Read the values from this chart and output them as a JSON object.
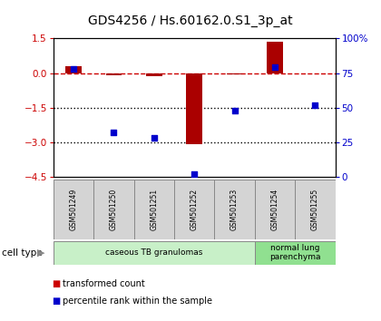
{
  "title": "GDS4256 / Hs.60162.0.S1_3p_at",
  "samples": [
    "GSM501249",
    "GSM501250",
    "GSM501251",
    "GSM501252",
    "GSM501253",
    "GSM501254",
    "GSM501255"
  ],
  "transformed_count": [
    0.3,
    -0.1,
    -0.15,
    -3.1,
    -0.05,
    1.35,
    -0.02
  ],
  "percentile_rank": [
    78,
    32,
    28,
    2,
    48,
    79,
    52
  ],
  "ylim_left": [
    -4.5,
    1.5
  ],
  "ylim_right": [
    0,
    100
  ],
  "left_ticks": [
    1.5,
    0,
    -1.5,
    -3.0,
    -4.5
  ],
  "right_ticks": [
    100,
    75,
    50,
    25,
    0
  ],
  "right_tick_labels": [
    "100%",
    "75",
    "50",
    "25",
    "0"
  ],
  "bar_color": "#aa0000",
  "dot_color": "#0000cc",
  "hline_y": 0,
  "hline_color": "#cc0000",
  "dotted_lines": [
    -1.5,
    -3.0
  ],
  "cell_type_groups": [
    {
      "label": "caseous TB granulomas",
      "start": 0,
      "end": 5,
      "color": "#c8f0c8"
    },
    {
      "label": "normal lung\nparenchyma",
      "start": 5,
      "end": 7,
      "color": "#90e090"
    }
  ],
  "cell_type_label": "cell type",
  "legend_entries": [
    {
      "color": "#cc0000",
      "label": "transformed count"
    },
    {
      "color": "#0000cc",
      "label": "percentile rank within the sample"
    }
  ],
  "bar_width": 0.4,
  "background_color": "#ffffff",
  "title_fontsize": 10
}
